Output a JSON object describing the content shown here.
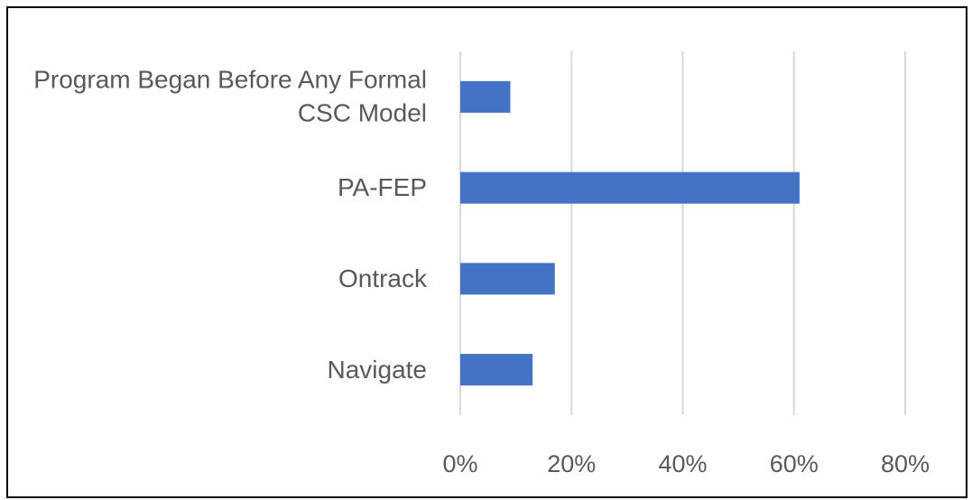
{
  "chart_data": {
    "type": "bar",
    "orientation": "horizontal",
    "categories": [
      "Program Began Before Any Formal CSC Model",
      "PA-FEP",
      "Ontrack",
      "Navigate"
    ],
    "values": [
      9,
      61,
      17,
      13
    ],
    "color": "#4472c4",
    "xlim": [
      0,
      80
    ],
    "xticks": [
      {
        "value": 0,
        "label": "0%"
      },
      {
        "value": 20,
        "label": "20%"
      },
      {
        "value": 40,
        "label": "40%"
      },
      {
        "value": 60,
        "label": "60%"
      },
      {
        "value": 80,
        "label": "80%"
      }
    ],
    "grid": true
  }
}
